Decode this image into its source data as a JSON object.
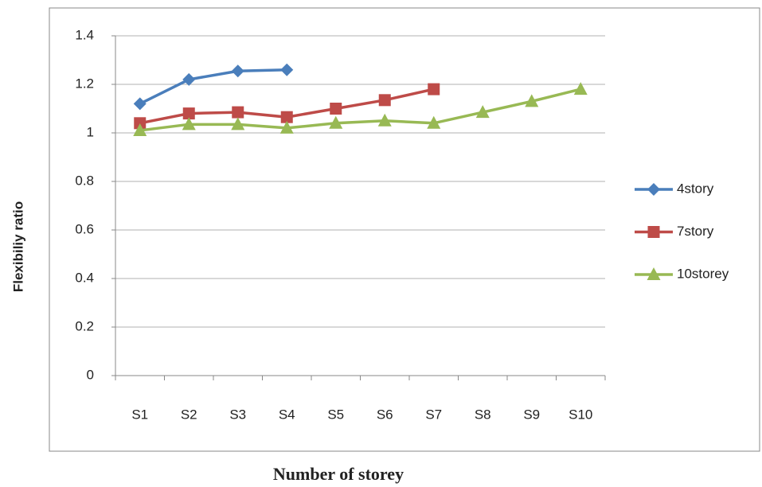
{
  "chart_data": {
    "type": "line",
    "x_label": "Number of storey",
    "y_label": "Flexibiliy ratio",
    "categories": [
      "S1",
      "S2",
      "S3",
      "S4",
      "S5",
      "S6",
      "S7",
      "S8",
      "S9",
      "S10"
    ],
    "series": [
      {
        "name": "4story",
        "color": "#4a7ebb",
        "marker": "diamond",
        "values": [
          1.12,
          1.22,
          1.255,
          1.26,
          null,
          null,
          null,
          null,
          null,
          null
        ]
      },
      {
        "name": "7story",
        "color": "#be4b48",
        "marker": "square",
        "values": [
          1.04,
          1.08,
          1.085,
          1.065,
          1.1,
          1.135,
          1.18,
          null,
          null,
          null
        ]
      },
      {
        "name": "10storey",
        "color": "#98b954",
        "marker": "triangle",
        "values": [
          1.01,
          1.035,
          1.035,
          1.02,
          1.04,
          1.05,
          1.04,
          1.085,
          1.13,
          1.18
        ]
      }
    ],
    "ylim": [
      0,
      1.4
    ],
    "yticks": [
      0,
      0.2,
      0.4,
      0.6,
      0.8,
      1,
      1.2,
      1.4
    ],
    "grid": true,
    "legend": "right"
  }
}
